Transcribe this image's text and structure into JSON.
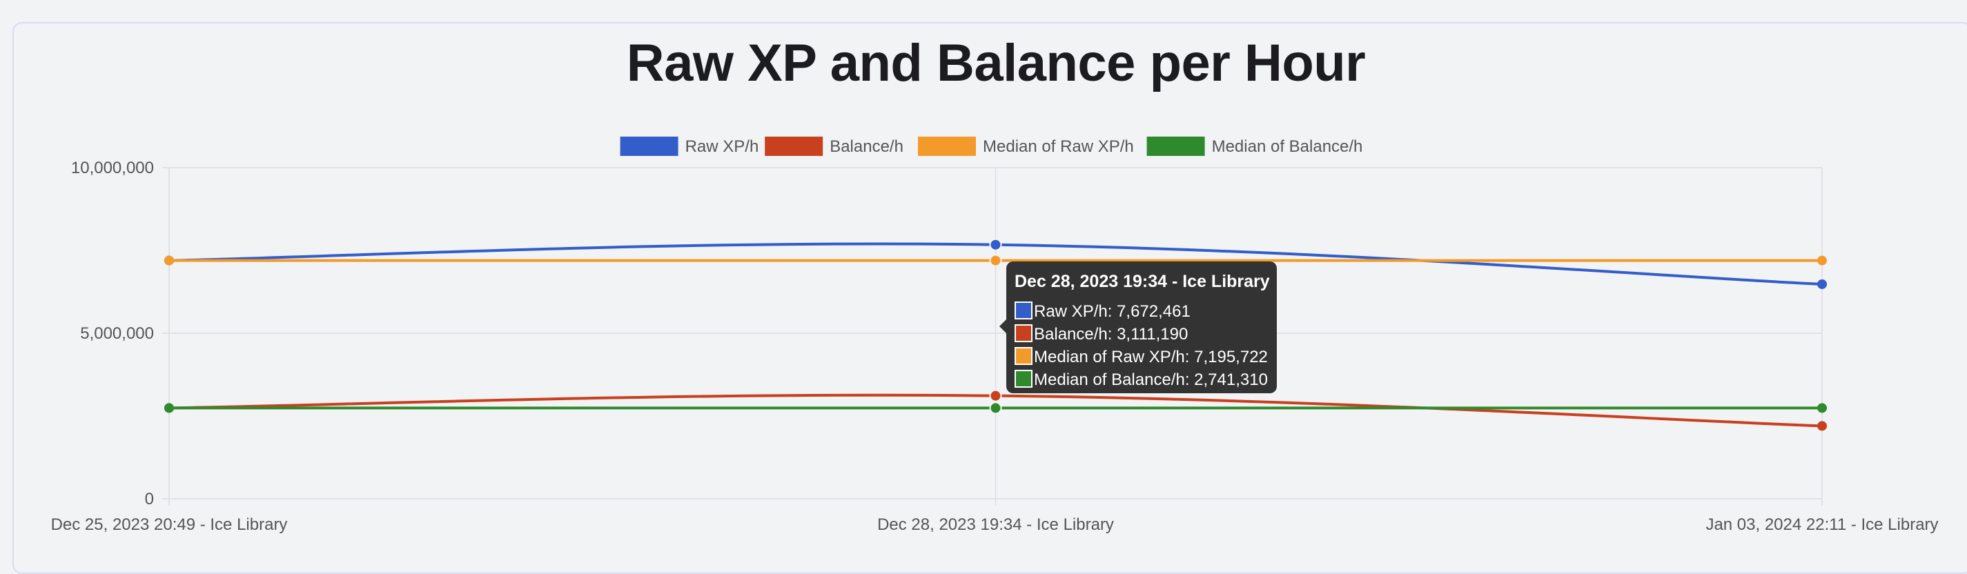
{
  "chart_data": {
    "type": "line",
    "title": "Raw XP and Balance per Hour",
    "xlabel": "",
    "ylabel": "",
    "categories": [
      "Dec 25, 2023 20:49 - Ice Library",
      "Dec 28, 2023 19:34 - Ice Library",
      "Jan 03, 2024 22:11 - Ice Library"
    ],
    "ylim": [
      0,
      10000000
    ],
    "yticks": [
      "10,000,000",
      "5,000,000",
      "0"
    ],
    "grid": true,
    "legend_position": "top",
    "series": [
      {
        "name": "Raw XP/h",
        "color": "#335dc9",
        "values": [
          7195722,
          7672461,
          6480000
        ]
      },
      {
        "name": "Balance/h",
        "color": "#c9401f",
        "values": [
          2741310,
          3111190,
          2200000
        ]
      },
      {
        "name": "Median of Raw XP/h",
        "color": "#f39a2b",
        "values": [
          7195722,
          7195722,
          7195722
        ]
      },
      {
        "name": "Median of Balance/h",
        "color": "#2f8a2b",
        "values": [
          2741310,
          2741310,
          2741310
        ]
      }
    ],
    "tooltip": {
      "category_index": 1,
      "title": "Dec 28, 2023 19:34 - Ice Library",
      "lines": [
        "Raw XP/h: 7,672,461",
        "Balance/h: 3,111,190",
        "Median of Raw XP/h: 7,195,722",
        "Median of Balance/h: 2,741,310"
      ]
    }
  }
}
